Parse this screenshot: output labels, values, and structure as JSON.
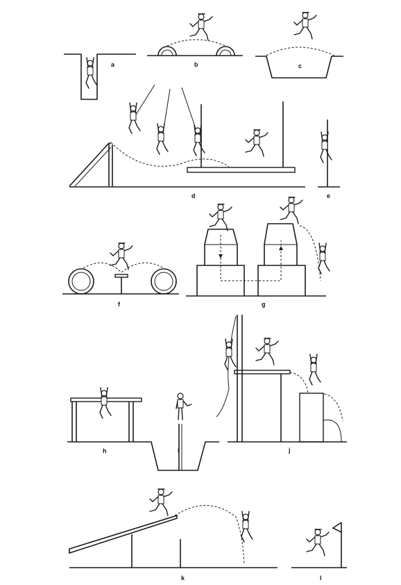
{
  "panels": {
    "a": "a",
    "b": "b",
    "c": "c",
    "d": "d",
    "e": "e",
    "f": "f",
    "g": "g",
    "h": "h",
    "i": "i",
    "j": "j",
    "k": "k",
    "l": "l"
  }
}
